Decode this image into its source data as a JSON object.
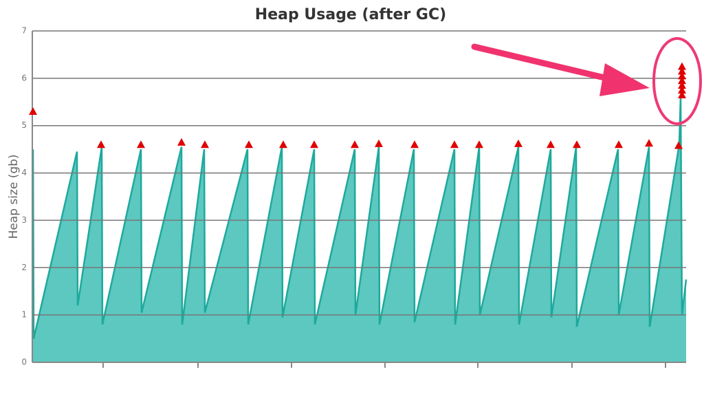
{
  "chart_data": {
    "type": "area",
    "title": "Heap Usage (after GC)",
    "ylabel": "Heap size (gb)",
    "color": "#5cc8c0",
    "line_color": "#1ea99c",
    "x": [
      1,
      2,
      65,
      66,
      101,
      102,
      158,
      159,
      217,
      218,
      250,
      251,
      313,
      314,
      363,
      364,
      410,
      411,
      469,
      470,
      504,
      505,
      555,
      556,
      614,
      615,
      650,
      651,
      707,
      708,
      754,
      755,
      791,
      792,
      852,
      853,
      897,
      898,
      941,
      943,
      945,
      951
    ],
    "values": [
      4.5,
      0.5,
      4.45,
      1.2,
      4.55,
      0.8,
      4.5,
      1.05,
      4.55,
      0.8,
      4.5,
      1.05,
      4.5,
      0.8,
      4.55,
      0.95,
      4.5,
      0.8,
      4.5,
      1.0,
      4.55,
      0.8,
      4.5,
      0.85,
      4.5,
      0.8,
      4.55,
      1.0,
      4.55,
      0.8,
      4.5,
      0.95,
      4.55,
      0.75,
      4.5,
      1.0,
      4.55,
      0.75,
      4.6,
      5.6,
      1.0,
      1.75
    ],
    "markers": {
      "color": "#e00000",
      "x": [
        1,
        100,
        158,
        217,
        251,
        315,
        365,
        410,
        469,
        504,
        556,
        614,
        650,
        707,
        754,
        792,
        853,
        897,
        940,
        945,
        945,
        945,
        945,
        945,
        945,
        945
      ],
      "values": [
        5.3,
        4.6,
        4.6,
        4.65,
        4.6,
        4.6,
        4.6,
        4.6,
        4.6,
        4.62,
        4.6,
        4.6,
        4.6,
        4.62,
        4.6,
        4.6,
        4.6,
        4.63,
        4.58,
        5.65,
        5.75,
        5.85,
        5.95,
        6.05,
        6.15,
        6.25
      ]
    },
    "xlim": [
      0,
      951
    ],
    "xticks": [
      103,
      241,
      377,
      513,
      648,
      785,
      921
    ],
    "ylim": [
      0,
      7
    ],
    "yticks": [
      0,
      1,
      2,
      3,
      4,
      5,
      6,
      7
    ],
    "grid": true
  }
}
